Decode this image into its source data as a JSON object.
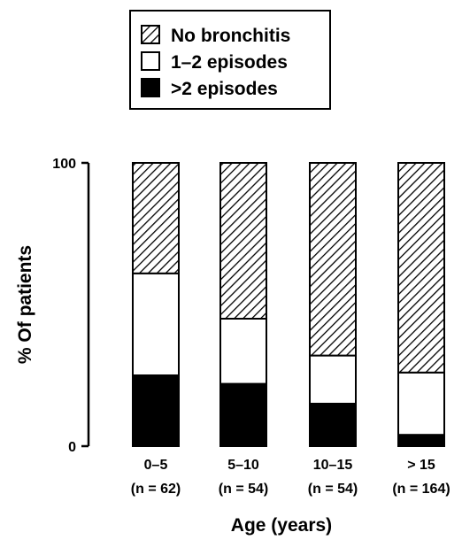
{
  "chart_data": {
    "type": "bar",
    "stacked": true,
    "title": "",
    "xlabel": "Age (years)",
    "ylabel": "% Of patients",
    "ylim": [
      0,
      100
    ],
    "yticks": [
      0,
      100
    ],
    "categories": [
      "0–5",
      "5–10",
      "10–15",
      "> 15"
    ],
    "category_counts": [
      "(n = 62)",
      "(n = 54)",
      "(n = 54)",
      "(n = 164)"
    ],
    "legend_position": "top-center",
    "series": [
      {
        "name": ">2 episodes",
        "pattern": "solid-black",
        "values": [
          25,
          22,
          15,
          4
        ]
      },
      {
        "name": "1–2 episodes",
        "pattern": "white",
        "values": [
          36,
          23,
          17,
          22
        ]
      },
      {
        "name": "No bronchitis",
        "pattern": "diagonal-hatch",
        "values": [
          39,
          55,
          68,
          74
        ]
      }
    ],
    "legend": [
      "No bronchitis",
      "1–2 episodes",
      ">2 episodes"
    ]
  }
}
